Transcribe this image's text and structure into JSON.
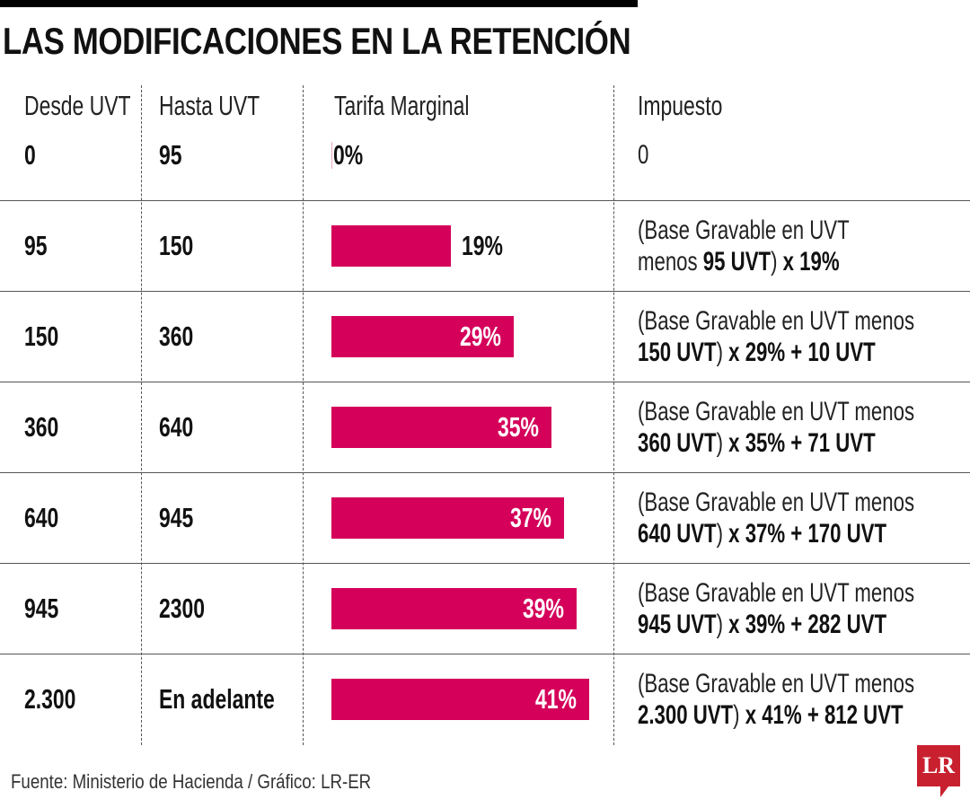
{
  "title": "LAS MODIFICACIONES EN LA RETENCIÓN",
  "headers": [
    "Desde UVT",
    "Hasta UVT",
    "Tarifa Marginal",
    "Impuesto"
  ],
  "source": "Fuente: Ministerio de Hacienda / Gráfico: LR-ER",
  "logo_text": "LR",
  "colors": {
    "bar": "#d4005a",
    "logo": "#c8202f"
  },
  "chart_data": {
    "type": "bar",
    "orientation": "horizontal",
    "title": "LAS MODIFICACIONES EN LA RETENCIÓN",
    "categories": [
      "0-95",
      "95-150",
      "150-360",
      "360-640",
      "640-945",
      "945-2300",
      "2.300-En adelante"
    ],
    "values": [
      0,
      19,
      29,
      35,
      37,
      39,
      41
    ],
    "unit": "%"
  },
  "rows": [
    {
      "desde": "0",
      "hasta": "95",
      "tarifa": 0,
      "tarifa_label": "0%",
      "impuesto": [
        [
          {
            "t": "0",
            "b": false
          }
        ]
      ]
    },
    {
      "desde": "95",
      "hasta": "150",
      "tarifa": 19,
      "tarifa_label": "19%",
      "impuesto": [
        [
          {
            "t": "(Base Gravable en UVT",
            "b": false
          }
        ],
        [
          {
            "t": "menos ",
            "b": false
          },
          {
            "t": "95 UVT",
            "b": true
          },
          {
            "t": ")",
            "b": false
          },
          {
            "t": " x 19%",
            "b": true
          }
        ]
      ]
    },
    {
      "desde": "150",
      "hasta": "360",
      "tarifa": 29,
      "tarifa_label": "29%",
      "impuesto": [
        [
          {
            "t": "(Base Gravable en UVT menos",
            "b": false
          }
        ],
        [
          {
            "t": "150 UVT",
            "b": true
          },
          {
            "t": ")",
            "b": false
          },
          {
            "t": " x 29% + 10 UVT",
            "b": true
          }
        ]
      ]
    },
    {
      "desde": "360",
      "hasta": "640",
      "tarifa": 35,
      "tarifa_label": "35%",
      "impuesto": [
        [
          {
            "t": "(Base Gravable en UVT menos",
            "b": false
          }
        ],
        [
          {
            "t": "360 UVT",
            "b": true
          },
          {
            "t": ")",
            "b": false
          },
          {
            "t": " x 35% + 71 UVT",
            "b": true
          }
        ]
      ]
    },
    {
      "desde": "640",
      "hasta": "945",
      "tarifa": 37,
      "tarifa_label": "37%",
      "impuesto": [
        [
          {
            "t": "(Base Gravable en UVT menos",
            "b": false
          }
        ],
        [
          {
            "t": "640 UVT",
            "b": true
          },
          {
            "t": ")",
            "b": false
          },
          {
            "t": " x 37% + 170 UVT",
            "b": true
          }
        ]
      ]
    },
    {
      "desde": "945",
      "hasta": "2300",
      "tarifa": 39,
      "tarifa_label": "39%",
      "impuesto": [
        [
          {
            "t": "(Base Gravable en UVT menos",
            "b": false
          }
        ],
        [
          {
            "t": "945 UVT",
            "b": true
          },
          {
            "t": ")",
            "b": false
          },
          {
            "t": " x 39% + 282 UVT",
            "b": true
          }
        ]
      ]
    },
    {
      "desde": "2.300",
      "hasta": "En adelante",
      "tarifa": 41,
      "tarifa_label": "41%",
      "impuesto": [
        [
          {
            "t": "(Base Gravable en UVT menos",
            "b": false
          }
        ],
        [
          {
            "t": "2.300 UVT",
            "b": true
          },
          {
            "t": ")",
            "b": false
          },
          {
            "t": " x 41% + 812 UVT",
            "b": true
          }
        ]
      ]
    }
  ]
}
